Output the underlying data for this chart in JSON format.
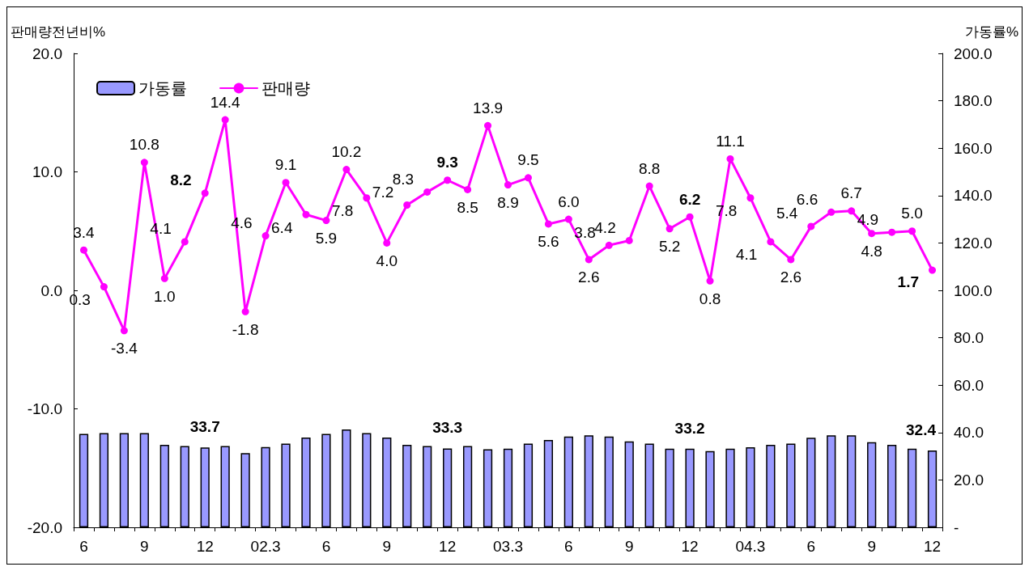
{
  "chart_data": {
    "type": "bar",
    "ylabel": "판매량전년비%",
    "y2label": "가동률%",
    "categories": [
      "6",
      null,
      null,
      "9",
      null,
      null,
      "12",
      null,
      null,
      "02.3",
      null,
      null,
      "6",
      null,
      null,
      "9",
      null,
      null,
      "12",
      null,
      null,
      "03.3",
      null,
      null,
      "6",
      null,
      null,
      "9",
      null,
      null,
      "12",
      null,
      null,
      "04.3",
      null,
      null,
      "6",
      null,
      null,
      "9",
      null,
      null,
      "12"
    ],
    "series": [
      {
        "name": "가동률",
        "axis": "y2",
        "color": "#9999ff",
        "values": [
          39.4,
          39.8,
          39.8,
          39.8,
          34.8,
          34.3,
          33.7,
          34.3,
          31.3,
          33.9,
          35.3,
          37.9,
          39.4,
          41.3,
          39.8,
          37.9,
          34.8,
          34.3,
          33.3,
          34.3,
          32.9,
          33.2,
          35.3,
          36.9,
          38.3,
          38.8,
          38.3,
          36.3,
          35.3,
          33.2,
          33.2,
          32.2,
          33.2,
          33.8,
          34.8,
          35.3,
          37.8,
          38.8,
          38.8,
          35.9,
          34.8,
          33.2,
          32.4
        ],
        "value_labels": [
          null,
          null,
          null,
          null,
          null,
          null,
          "33.7",
          null,
          null,
          null,
          null,
          null,
          null,
          null,
          null,
          null,
          null,
          null,
          "33.3",
          null,
          null,
          null,
          null,
          null,
          null,
          null,
          null,
          null,
          null,
          null,
          "33.2",
          null,
          null,
          null,
          null,
          null,
          null,
          null,
          null,
          null,
          null,
          null,
          "32.4"
        ]
      },
      {
        "name": "판매량",
        "type": "line",
        "color": "#ff00ff",
        "marker": "circle",
        "values": [
          3.4,
          0.3,
          -3.4,
          10.8,
          1.0,
          4.1,
          8.2,
          14.4,
          -1.8,
          4.6,
          9.1,
          6.4,
          5.9,
          10.2,
          7.8,
          4.0,
          7.2,
          8.3,
          9.3,
          8.5,
          13.9,
          8.9,
          9.5,
          5.6,
          6.0,
          2.6,
          3.8,
          4.2,
          8.8,
          5.2,
          6.2,
          0.8,
          11.1,
          7.8,
          4.1,
          2.6,
          5.4,
          6.6,
          6.7,
          4.8,
          4.9,
          5.0,
          1.7
        ],
        "value_labels": [
          "3.4",
          "0.3",
          "-3.4",
          "10.8",
          "1.0",
          "4.1",
          "8.2",
          "14.4",
          "-1.8",
          "4.6",
          "9.1",
          "6.4",
          "5.9",
          "10.2",
          "7.8",
          "4.0",
          "7.2",
          "8.3",
          "9.3",
          "8.5",
          "13.9",
          "8.9",
          "9.5",
          "5.6",
          "6.0",
          "2.6",
          "3.8",
          "4.2",
          "8.8",
          "5.2",
          "6.2",
          "0.8",
          "11.1",
          "7.8",
          "4.1",
          "2.6",
          "5.4",
          "6.6",
          "6.7",
          "4.8",
          "4.9",
          "5.0",
          "1.7"
        ]
      }
    ],
    "ylim": [
      -20,
      20
    ],
    "yticks": [
      {
        "value": -20,
        "label": "-20.0"
      },
      {
        "value": -10,
        "label": "-10.0"
      },
      {
        "value": 0,
        "label": "0.0"
      },
      {
        "value": 10,
        "label": "10.0"
      },
      {
        "value": 20,
        "label": "20.0"
      }
    ],
    "y2lim": [
      0,
      200
    ],
    "y2ticks": [
      {
        "value": 0,
        "label": "-"
      },
      {
        "value": 20,
        "label": "20.0"
      },
      {
        "value": 40,
        "label": "40.0"
      },
      {
        "value": 60,
        "label": "60.0"
      },
      {
        "value": 80,
        "label": "80.0"
      },
      {
        "value": 100,
        "label": "100.0"
      },
      {
        "value": 120,
        "label": "120.0"
      },
      {
        "value": 140,
        "label": "140.0"
      },
      {
        "value": 160,
        "label": "160.0"
      },
      {
        "value": 180,
        "label": "180.0"
      },
      {
        "value": 200,
        "label": "200.0"
      }
    ],
    "grid": false,
    "legend": "top left"
  }
}
